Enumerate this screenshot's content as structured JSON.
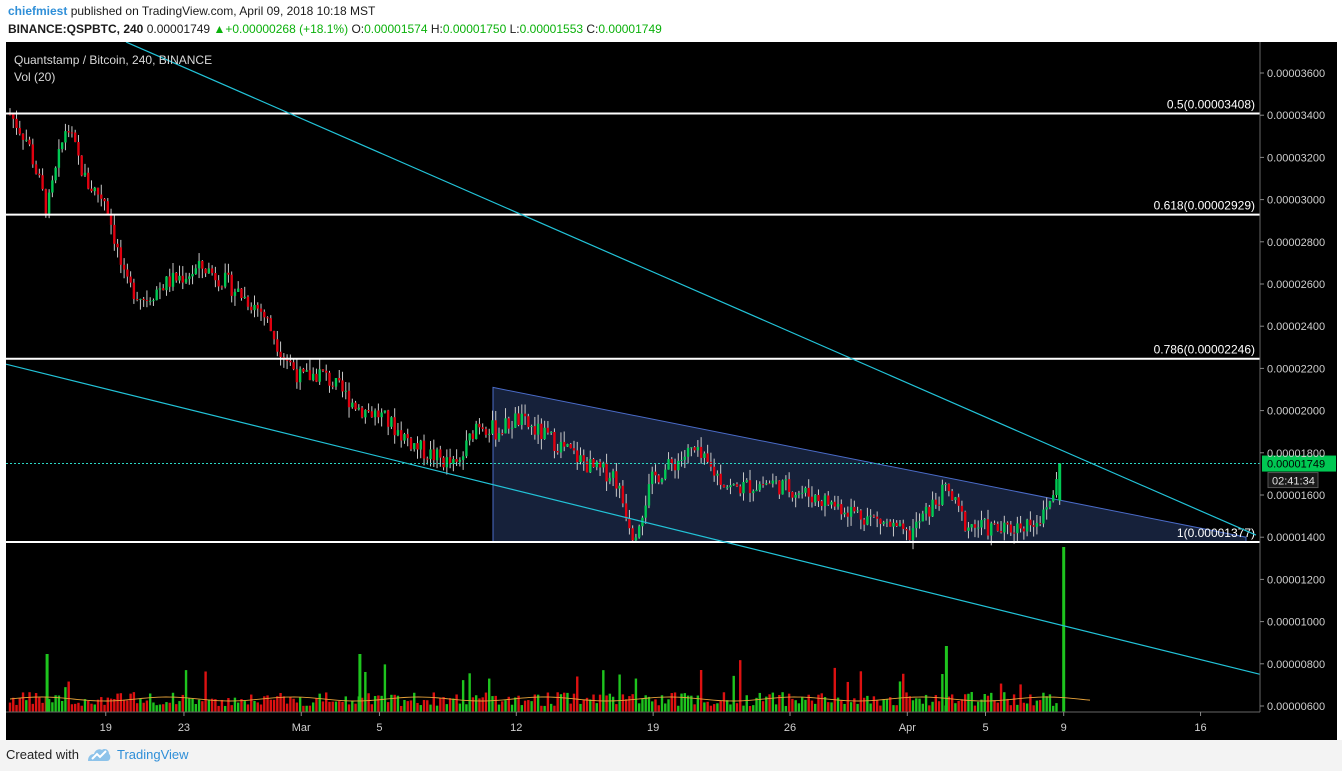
{
  "header": {
    "author": "chiefmiest",
    "published": "published on TradingView.com, April 09, 2018 10:18 MST",
    "symbol_line": "BINANCE:QSPBTC, 240",
    "last_price": "0.00001749",
    "change": "▲+0.00000268 (+18.1%)",
    "open_label": "O:",
    "open": "0.00001574",
    "high_label": "H:",
    "high": "0.00001750",
    "low_label": "L:",
    "low": "0.00001553",
    "close_label": "C:",
    "close": "0.00001749"
  },
  "legend": {
    "title": "Quantstamp / Bitcoin, 240, BINANCE",
    "volume": "Vol (20)"
  },
  "footer": {
    "created_with": "Created with",
    "brand": "TradingView"
  },
  "colors": {
    "background": "#000000",
    "up": "#00c853",
    "down": "#e0000f",
    "volume_up": "#1ec41e",
    "volume_down": "#dd1111",
    "trendline": "#22c3d8",
    "wedge_fill": "#1a2744",
    "wedge_border": "#4a6bc8",
    "fib_line": "#ffffff",
    "price_tag": "#00c853"
  },
  "chart_data": {
    "type": "candlestick",
    "title": "Quantstamp / Bitcoin, 240, BINANCE",
    "interval": "240",
    "price_axis": [
      "0.00003600",
      "0.00003400",
      "0.00003200",
      "0.00003000",
      "0.00002800",
      "0.00002600",
      "0.00002400",
      "0.00002200",
      "0.00002000",
      "0.00001800",
      "0.00001600",
      "0.00001400",
      "0.00001200",
      "0.00001000",
      "0.00000800",
      "0.00000600"
    ],
    "ylim": [
      5.6e-06,
      3.7e-05
    ],
    "time_axis": [
      "19",
      "23",
      "Mar",
      "5",
      "12",
      "19",
      "26",
      "Apr",
      "5",
      "9",
      "16"
    ],
    "fib_levels": [
      {
        "label": "0.5(0.00003408)",
        "value": 3.408e-05
      },
      {
        "label": "0.618(0.00002929)",
        "value": 2.929e-05
      },
      {
        "label": "0.786(0.00002246)",
        "value": 2.246e-05
      },
      {
        "label": "1(0.00001377)",
        "value": 1.377e-05
      }
    ],
    "last_price_label": "0.00001749",
    "countdown": "02:41:34",
    "price_path": [
      {
        "date": "2018-02-14",
        "close": 3.42e-05
      },
      {
        "date": "2018-02-15",
        "close": 3.28e-05
      },
      {
        "date": "2018-02-16",
        "close": 2.95e-05
      },
      {
        "date": "2018-02-17",
        "close": 3.36e-05
      },
      {
        "date": "2018-02-18",
        "close": 3.08e-05
      },
      {
        "date": "2018-02-19",
        "close": 3e-05
      },
      {
        "date": "2018-02-20",
        "close": 2.6e-05
      },
      {
        "date": "2018-02-21",
        "close": 2.53e-05
      },
      {
        "date": "2018-02-22",
        "close": 2.6e-05
      },
      {
        "date": "2018-02-24",
        "close": 2.68e-05
      },
      {
        "date": "2018-02-25",
        "close": 2.62e-05
      },
      {
        "date": "2018-02-27",
        "close": 2.47e-05
      },
      {
        "date": "2018-02-28",
        "close": 2.28e-05
      },
      {
        "date": "2018-03-01",
        "close": 2.15e-05
      },
      {
        "date": "2018-03-02",
        "close": 2.18e-05
      },
      {
        "date": "2018-03-04",
        "close": 2.01e-05
      },
      {
        "date": "2018-03-05",
        "close": 1.98e-05
      },
      {
        "date": "2018-03-07",
        "close": 1.82e-05
      },
      {
        "date": "2018-03-09",
        "close": 1.73e-05
      },
      {
        "date": "2018-03-10",
        "close": 1.95e-05
      },
      {
        "date": "2018-03-11",
        "close": 1.9e-05
      },
      {
        "date": "2018-03-12",
        "close": 1.96e-05
      },
      {
        "date": "2018-03-14",
        "close": 1.85e-05
      },
      {
        "date": "2018-03-16",
        "close": 1.72e-05
      },
      {
        "date": "2018-03-17",
        "close": 1.7e-05
      },
      {
        "date": "2018-03-18",
        "close": 1.41e-05
      },
      {
        "date": "2018-03-19",
        "close": 1.68e-05
      },
      {
        "date": "2018-03-21",
        "close": 1.81e-05
      },
      {
        "date": "2018-03-23",
        "close": 1.63e-05
      },
      {
        "date": "2018-03-25",
        "close": 1.66e-05
      },
      {
        "date": "2018-03-27",
        "close": 1.6e-05
      },
      {
        "date": "2018-03-29",
        "close": 1.53e-05
      },
      {
        "date": "2018-03-31",
        "close": 1.46e-05
      },
      {
        "date": "2018-04-01",
        "close": 1.4e-05
      },
      {
        "date": "2018-04-03",
        "close": 1.63e-05
      },
      {
        "date": "2018-04-04",
        "close": 1.46e-05
      },
      {
        "date": "2018-04-06",
        "close": 1.43e-05
      },
      {
        "date": "2018-04-08",
        "close": 1.5e-05
      },
      {
        "date": "2018-04-09",
        "close": 1.749e-05
      }
    ],
    "volume_series": [
      {
        "date": "2018-02-16",
        "volume": "high"
      },
      {
        "date": "2018-03-04",
        "volume": "high"
      },
      {
        "date": "2018-04-03",
        "volume": "high"
      },
      {
        "date": "2018-04-09",
        "volume": "very high"
      }
    ],
    "annotations": [
      "descending wedge from Mar 9 to Apr 9",
      "two descending cyan trendlines"
    ]
  }
}
